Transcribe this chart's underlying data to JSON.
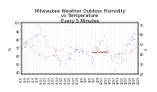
{
  "title": "Milwaukee Weather Outdoor Humidity\nvs Temperature\nEvery 5 Minutes",
  "title_fontsize": 3.8,
  "background_color": "#ffffff",
  "grid_color": "#bbbbbb",
  "blue_color": "#0000cc",
  "red_color": "#cc0000",
  "ylim_left": [
    38,
    100
  ],
  "ylim_right": [
    20,
    72
  ],
  "tick_fontsize": 2.5,
  "ylabel_fontsize": 3.0,
  "x_tick_labels": [
    "11/1",
    "11/3",
    "11/5",
    "11/7",
    "11/9",
    "11/11",
    "11/13",
    "11/15",
    "11/17",
    "11/19",
    "11/21",
    "11/23",
    "11/25",
    "11/27",
    "11/29",
    "12/1",
    "12/3",
    "12/5",
    "12/7",
    "12/9",
    "12/11",
    "12/13",
    "12/15",
    "12/17",
    "12/19",
    "12/21",
    "12/23",
    "12/25",
    "12/27",
    "12/29"
  ],
  "yticks_left": [
    40,
    50,
    60,
    70,
    80,
    90,
    100
  ],
  "yticks_right": [
    20,
    30,
    40,
    50,
    60,
    70
  ],
  "ylabel_left": "%",
  "ylabel_right": "F"
}
